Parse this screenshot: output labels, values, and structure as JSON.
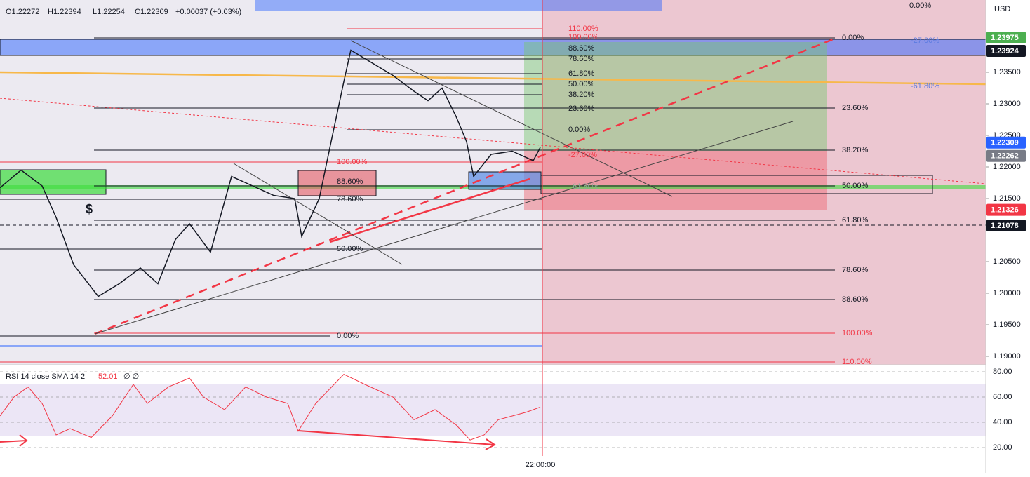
{
  "header": {
    "open": "O1.22272",
    "high": "H1.22394",
    "low": "L1.22254",
    "close": "C1.22309",
    "change": "+0.00037 (+0.03%)"
  },
  "price_axis": {
    "currency": "USD",
    "ticks": [
      {
        "value": 1.235,
        "label": "1.23500"
      },
      {
        "value": 1.23,
        "label": "1.23000"
      },
      {
        "value": 1.225,
        "label": "1.22500"
      },
      {
        "value": 1.22,
        "label": "1.22000"
      },
      {
        "value": 1.215,
        "label": "1.21500"
      },
      {
        "value": 1.205,
        "label": "1.20500"
      },
      {
        "value": 1.2,
        "label": "1.20000"
      },
      {
        "value": 1.195,
        "label": "1.19500"
      },
      {
        "value": 1.19,
        "label": "1.19000"
      }
    ],
    "badges": [
      {
        "value": 1.23975,
        "label": "1.23975",
        "color": "#4caf50"
      },
      {
        "value": 1.23924,
        "label": "1.23924",
        "color": "#131722"
      },
      {
        "value": 1.22309,
        "label": "1.22309",
        "color": "#2962ff"
      },
      {
        "value": 1.22262,
        "label": "1.22262",
        "color": "#787b86"
      },
      {
        "value": 1.21326,
        "label": "1.21326",
        "color": "#f23645"
      },
      {
        "value": 1.21078,
        "label": "1.21078",
        "color": "#131722"
      }
    ]
  },
  "fib_right": [
    "0.00%",
    "23.60%",
    "38.20%",
    "50.00%",
    "61.80%",
    "78.60%",
    "88.60%",
    "100.00%",
    "110.00%"
  ],
  "fib_right_top": "0.00%",
  "fib_mid": [
    "110.00%",
    "100.00%",
    "88.60%",
    "78.60%",
    "61.80%",
    "50.00%",
    "38.20%",
    "23.60%",
    "0.00%",
    "-27.00%"
  ],
  "fib_left": [
    "100.00%",
    "88.60%",
    "78.60%",
    "50.00%",
    "0.00%"
  ],
  "annotations": {
    "dollar": "$",
    "ext_a": "-27.00%",
    "ext_b": "-61.80%",
    "faint": "61.80%"
  },
  "price_path": {
    "bars": [
      0,
      6,
      12,
      16,
      21,
      28,
      34,
      40,
      45,
      50,
      54,
      60,
      66,
      72,
      78,
      84,
      86,
      91,
      94,
      98,
      100,
      106,
      112,
      118,
      122,
      126,
      130,
      133,
      135,
      140,
      146,
      152,
      154
    ],
    "close": [
      1.2167,
      1.2195,
      1.217,
      1.212,
      1.2045,
      1.1995,
      1.2015,
      1.204,
      1.2015,
      1.2085,
      1.211,
      1.2065,
      1.2185,
      1.217,
      1.2155,
      1.215,
      1.209,
      1.215,
      1.223,
      1.2335,
      1.2385,
      1.2365,
      1.2345,
      1.232,
      1.2305,
      1.2325,
      1.228,
      1.224,
      1.2185,
      1.222,
      1.2225,
      1.221,
      1.2231
    ]
  },
  "rsi": {
    "title": "RSI 14 close SMA 14 2",
    "value": "52.01",
    "extra": "∅ ∅",
    "ticks": [
      {
        "value": 80,
        "label": "80.00"
      },
      {
        "value": 60,
        "label": "60.00"
      },
      {
        "value": 40,
        "label": "40.00"
      },
      {
        "value": 20,
        "label": "20.00"
      }
    ],
    "bars": [
      0,
      4,
      8,
      12,
      16,
      20,
      26,
      32,
      38,
      42,
      48,
      54,
      58,
      64,
      70,
      76,
      82,
      85,
      90,
      98,
      104,
      112,
      118,
      124,
      130,
      134,
      138,
      142,
      150,
      154
    ],
    "values": [
      45,
      60,
      68,
      55,
      30,
      35,
      28,
      45,
      70,
      55,
      68,
      75,
      60,
      50,
      68,
      60,
      55,
      33,
      55,
      78,
      70,
      60,
      42,
      50,
      38,
      26,
      30,
      42,
      48,
      52.01
    ]
  },
  "time_label": "22:00:00"
}
